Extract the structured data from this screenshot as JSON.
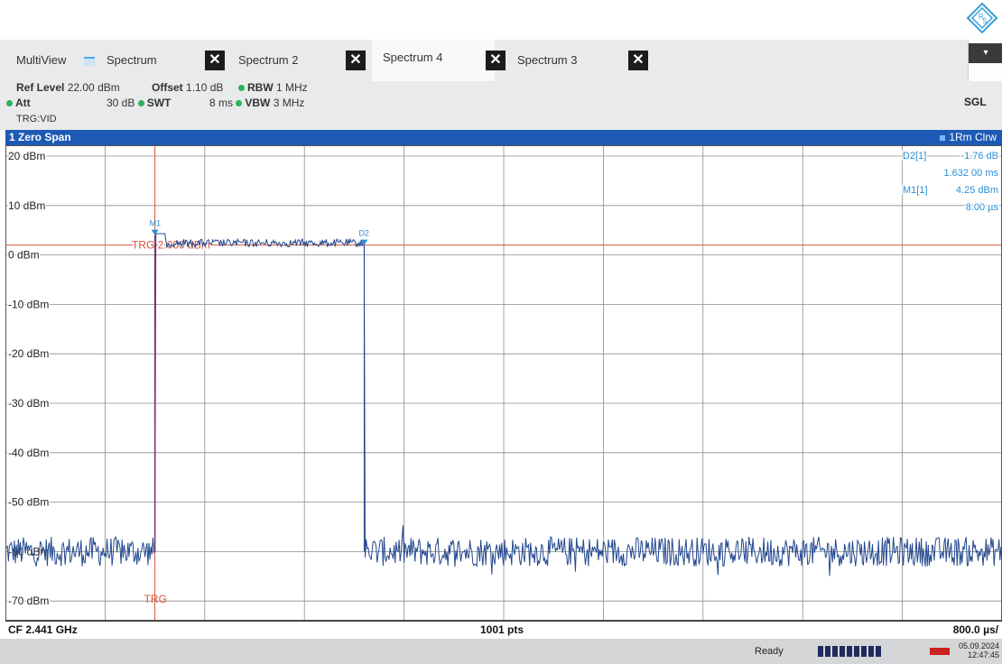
{
  "tabs": {
    "multiview": "MultiView",
    "spectrum": "Spectrum",
    "spectrum2": "Spectrum 2",
    "spectrum4": "Spectrum 4",
    "spectrum3": "Spectrum 3",
    "close_symbol": "✕"
  },
  "header": {
    "ref_level_label": "Ref Level",
    "ref_level_value": "22.00 dBm",
    "offset_label": "Offset",
    "offset_value": "1.10 dB",
    "rbw_label": "RBW",
    "rbw_value": "1 MHz",
    "att_label": "Att",
    "att_value": "30 dB",
    "swt_label": "SWT",
    "swt_value": "8 ms",
    "vbw_label": "VBW",
    "vbw_value": "3 MHz",
    "trg_mode": "TRG:VID",
    "sgl": "SGL"
  },
  "window": {
    "title": "1 Zero Span",
    "trace_label": "1Rm Clrw"
  },
  "markers": {
    "d2_label": "D2[1]",
    "d2_value": "-1.76 dB",
    "d2_time": "1.632 00 ms",
    "m1_label": "M1[1]",
    "m1_value": "4.25 dBm",
    "m1_time": "8.00 µs",
    "m1_tag": "M1",
    "d2_tag": "D2"
  },
  "trigger": {
    "line_label": "TRG 2.000 dBm",
    "bottom_label": "TRG"
  },
  "footer": {
    "cf": "CF 2.441 GHz",
    "pts": "1001 pts",
    "div": "800.0 µs/"
  },
  "status": {
    "ready": "Ready",
    "date": "05.09.2024",
    "time": "12:47:45"
  },
  "chart_data": {
    "type": "line",
    "ylabels": [
      "20 dBm",
      "10 dBm",
      "0 dBm",
      "-10 dBm",
      "-20 dBm",
      "-30 dBm",
      "-40 dBm",
      "-50 dBm",
      "-60 dBm",
      "-70 dBm"
    ],
    "yticks": [
      20,
      10,
      0,
      -10,
      -20,
      -30,
      -40,
      -50,
      -60,
      -70
    ],
    "ylim": [
      -80,
      20
    ],
    "x_divisions": 10,
    "x_per_div_us": 800,
    "trigger_level_dbm": 2.0,
    "trigger_position_div": 1.5,
    "noise_floor_dbm": -60,
    "pulse_level_dbm": 4,
    "pulse_start_div": 1.5,
    "pulse_end_div": 3.6,
    "colors": {
      "trace": "#23488f",
      "trigger": "#d9533a",
      "marker": "#2b8fd4",
      "grid": "#8c8c8c"
    }
  }
}
